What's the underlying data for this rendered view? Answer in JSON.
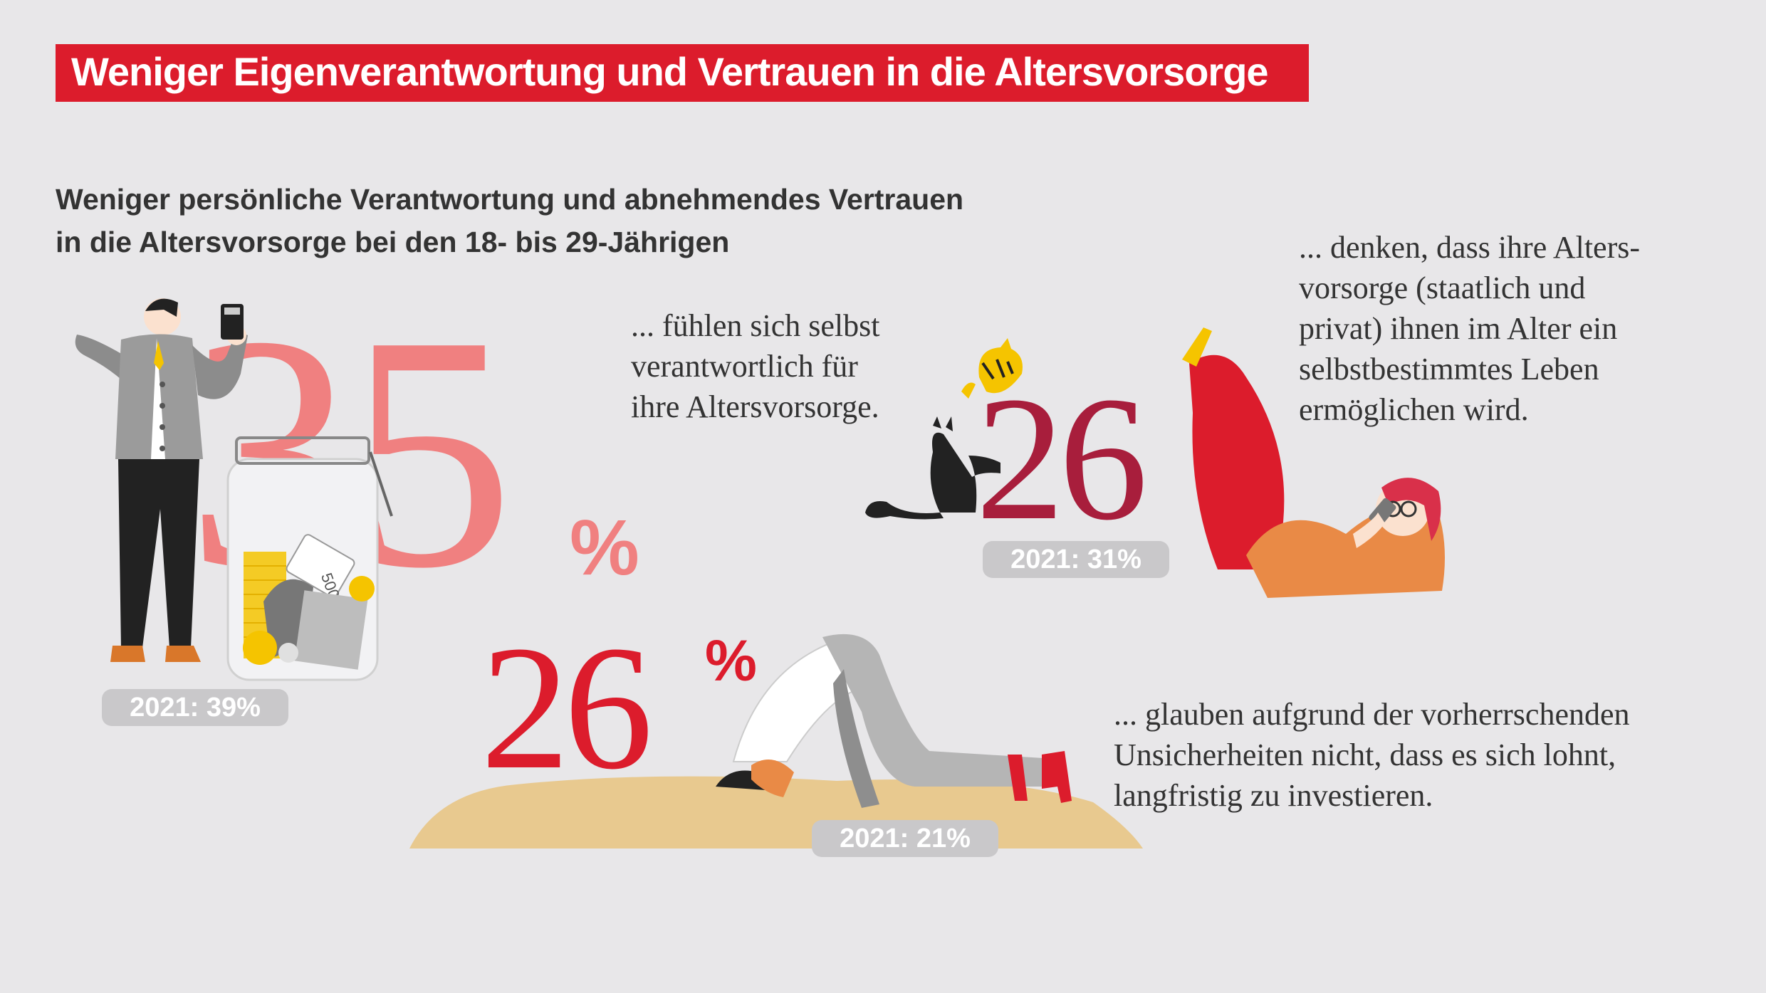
{
  "banner": {
    "title": "Weniger Eigenverantwortung und Vertrauen in die Altersvorsorge"
  },
  "subtitle": {
    "line1": "Weniger persönliche Verantwortung und abnehmendes Vertrauen",
    "line2": "in die Altersvorsorge bei den 18- bis  29-Jährigen"
  },
  "stats": [
    {
      "value": "35",
      "unit": "%",
      "color": "#f08080",
      "previous": "2021: 39%",
      "text": [
        "... fühlen sich selbst",
        "verantwortlich für",
        "ihre Altersvorsorge."
      ]
    },
    {
      "value": "26",
      "unit": "%",
      "color": "#a81e3c",
      "previous": "2021: 31%",
      "text": [
        "... denken, dass ihre Alters-",
        "vorsorge (staatlich und",
        "privat) ihnen im Alter ein",
        "selbstbestimmtes Leben",
        "ermöglichen wird."
      ]
    },
    {
      "value": "26",
      "unit": "%",
      "color": "#dc1c2c",
      "previous": "2021: 21%",
      "text": [
        "... glauben aufgrund der vorherrschenden",
        "Unsicherheiten nicht, dass es sich lohnt,",
        "langfristig zu investieren."
      ]
    }
  ],
  "illustrations": {
    "man_with_calculator": "man-calculator-icon",
    "money_jar": "coin-jar-icon",
    "cats": "cat-icon",
    "woman_relaxing": "woman-reading-phone-icon",
    "person_head_in_sand": "head-in-sand-icon",
    "banknote_label": "500"
  },
  "colors": {
    "background": "#e8e7e9",
    "accent": "#dc1c2c",
    "salmon": "#f08080",
    "wine": "#a81e3c",
    "badge": "#c9c8ca"
  }
}
